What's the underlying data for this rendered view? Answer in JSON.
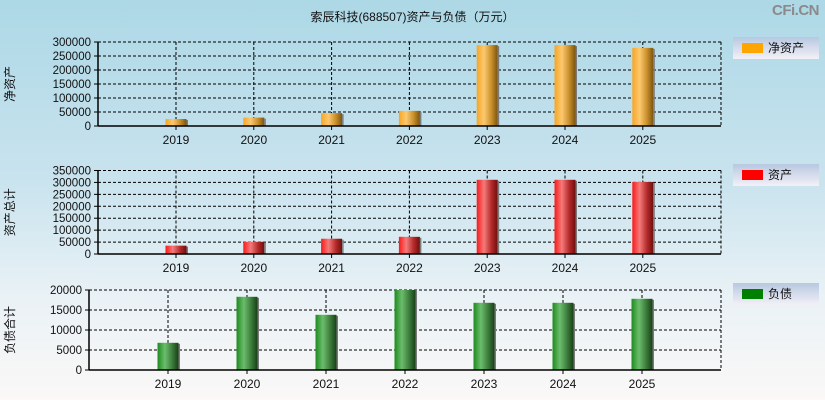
{
  "title": "索辰科技(688507)资产与负债（万元）",
  "watermark": "CFi.CN",
  "chart_data": [
    {
      "type": "bar",
      "title": "索辰科技(688507)资产与负债（万元）",
      "ylabel": "净资产",
      "legend": "净资产",
      "color": "#FFA500",
      "categories": [
        "2019",
        "2020",
        "2021",
        "2022",
        "2023",
        "2024",
        "2025"
      ],
      "values": [
        25000,
        30000,
        46000,
        54000,
        289000,
        289000,
        279000
      ],
      "yticks": [
        0,
        50000,
        100000,
        150000,
        200000,
        250000,
        300000
      ],
      "ylim": [
        0,
        300000
      ],
      "grid": true,
      "legend_position": "right"
    },
    {
      "type": "bar",
      "ylabel": "资产总计",
      "legend": "资产",
      "color": "#FF0000",
      "categories": [
        "2019",
        "2020",
        "2021",
        "2022",
        "2023",
        "2024",
        "2025"
      ],
      "values": [
        35000,
        51000,
        64000,
        72000,
        311000,
        311000,
        302000
      ],
      "yticks": [
        0,
        50000,
        100000,
        150000,
        200000,
        250000,
        300000,
        350000
      ],
      "ylim": [
        0,
        350000
      ],
      "grid": true,
      "legend_position": "right"
    },
    {
      "type": "bar",
      "ylabel": "负债合计",
      "legend": "负债",
      "color": "#008000",
      "categories": [
        "2019",
        "2020",
        "2021",
        "2022",
        "2023",
        "2024",
        "2025"
      ],
      "values": [
        6800,
        18300,
        13800,
        20000,
        16800,
        16800,
        17800
      ],
      "yticks": [
        0,
        5000,
        10000,
        15000,
        20000
      ],
      "ylim": [
        0,
        20000
      ],
      "grid": true,
      "legend_position": "right"
    }
  ]
}
